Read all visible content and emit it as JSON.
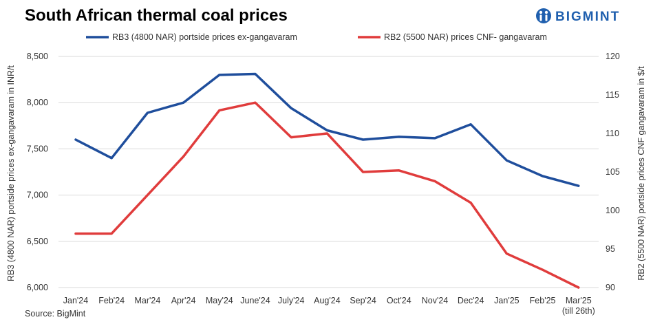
{
  "title": "South African thermal coal prices",
  "brand": {
    "name": "BIGMINT",
    "color": "#1f5fae"
  },
  "source": "Source: BigMint",
  "chart_data": {
    "type": "line",
    "x": [
      "Jan'24",
      "Feb'24",
      "Mar'24",
      "Apr'24",
      "May'24",
      "June'24",
      "July'24",
      "Aug'24",
      "Sep'24",
      "Oct'24",
      "Nov'24",
      "Dec'24",
      "Jan'25",
      "Feb'25",
      "Mar'25"
    ],
    "x_sublabels": {
      "14": "(till 26th)"
    },
    "series": [
      {
        "name": "RB3 (4800 NAR) portside prices ex-gangavaram",
        "axis": "left",
        "color": "#1f4e9c",
        "values": [
          7600,
          7400,
          7890,
          8000,
          8300,
          8310,
          7940,
          7700,
          7600,
          7630,
          7615,
          7765,
          7375,
          7205,
          7100
        ]
      },
      {
        "name": "RB2 (5500 NAR) prices CNF- gangavaram",
        "axis": "right",
        "color": "#e03c3c",
        "values": [
          97,
          97,
          102,
          107,
          113,
          114,
          109.5,
          110,
          105,
          105.2,
          103.8,
          101,
          94.4,
          92.3,
          90
        ]
      }
    ],
    "y_left": {
      "label": "RB3 (4800 NAR) portside prices ex-gangavaram  in INR/t",
      "ylim": [
        6000,
        8500
      ],
      "ticks": [
        6000,
        6500,
        7000,
        7500,
        8000,
        8500
      ],
      "tick_labels": [
        "6,000",
        "6,500",
        "7,000",
        "7,500",
        "8,000",
        "8,500"
      ]
    },
    "y_right": {
      "label": "RB2 (5500 NAR) portside prices CNF  gangavaram  in $/t",
      "ylim": [
        90,
        120
      ],
      "ticks": [
        90,
        95,
        100,
        105,
        110,
        115,
        120
      ],
      "tick_labels": [
        "90",
        "95",
        "100",
        "105",
        "110",
        "115",
        "120"
      ]
    },
    "grid": true,
    "legend_position": "top"
  }
}
